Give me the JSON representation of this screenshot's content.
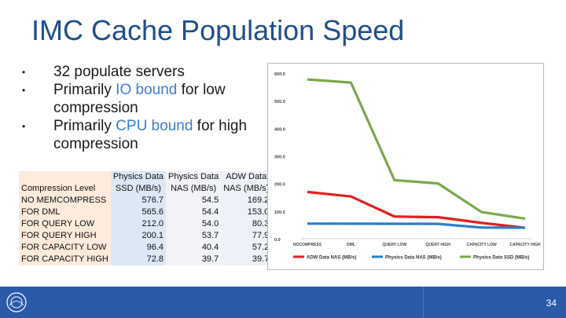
{
  "title": "IMC Cache Population Speed",
  "bullets": [
    {
      "parts": [
        {
          "text": "32 populate servers",
          "hl": false
        }
      ]
    },
    {
      "parts": [
        {
          "text": "Primarily ",
          "hl": false
        },
        {
          "text": "IO bound",
          "hl": true
        },
        {
          "text": " for low compression",
          "hl": false
        }
      ]
    },
    {
      "parts": [
        {
          "text": "Primarily ",
          "hl": false
        },
        {
          "text": "CPU bound",
          "hl": true
        },
        {
          "text": " for high compression",
          "hl": false
        }
      ]
    }
  ],
  "bullet_char": "•",
  "table": {
    "headers": [
      [
        "",
        "Physics Data",
        "Physics Data",
        "ADW Data"
      ],
      [
        "Compression Level",
        "SSD (MB/s)",
        "NAS (MB/s)",
        "NAS (MB/s)"
      ]
    ],
    "rows": [
      [
        "NO MEMCOMPRESS",
        "576.7",
        "54.5",
        "169.2"
      ],
      [
        "FOR DML",
        "565.6",
        "54.4",
        "153.0"
      ],
      [
        "FOR QUERY LOW",
        "212.0",
        "54.0",
        "80.3"
      ],
      [
        "FOR QUERY HIGH",
        "200.1",
        "53.7",
        "77.9"
      ],
      [
        "FOR CAPACITY LOW",
        "96.4",
        "40.4",
        "57.2"
      ],
      [
        "FOR CAPACITY HIGH",
        "72.8",
        "39.7",
        "39.7"
      ]
    ]
  },
  "chart_data": {
    "type": "line",
    "categories": [
      "NOCOMPRESS",
      "DML",
      "QUERY LOW",
      "QUERY HIGH",
      "CAPACITY LOW",
      "CAPACITY HIGH"
    ],
    "series": [
      {
        "name": "ADW Data NAS (MB/s)",
        "color": "#e02020",
        "values": [
          169.2,
          153.0,
          80.3,
          77.9,
          57.2,
          39.7
        ]
      },
      {
        "name": "Physics Data NAS (MB/s)",
        "color": "#2a7fc8",
        "values": [
          54.5,
          54.4,
          54.0,
          53.7,
          40.4,
          39.7
        ]
      },
      {
        "name": "Physics Data SSD (MB/s)",
        "color": "#7aa84a",
        "values": [
          576.7,
          565.6,
          212.0,
          200.1,
          96.4,
          72.8
        ]
      }
    ],
    "yticks": [
      "600.0",
      "500.0",
      "400.0",
      "300.0",
      "200.0",
      "100.0",
      "0.0"
    ],
    "ylim": [
      0,
      600
    ],
    "legend": "bottom",
    "grid": false
  },
  "footer": {
    "page": "34"
  }
}
